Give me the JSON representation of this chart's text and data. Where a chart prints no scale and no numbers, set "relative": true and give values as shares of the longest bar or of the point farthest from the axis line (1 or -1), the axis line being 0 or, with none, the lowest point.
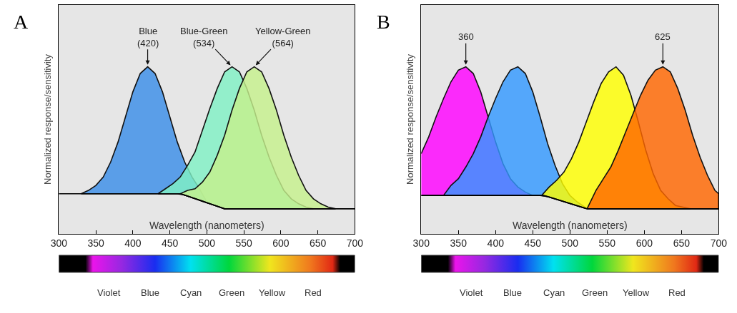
{
  "chart_data": [
    {
      "type": "area",
      "title": "A",
      "xlabel": "Wavelength (nanometers)",
      "ylabel": "Normalized response/sensitivity",
      "xlim": [
        300,
        700
      ],
      "xticks": [
        300,
        350,
        400,
        450,
        500,
        550,
        600,
        650,
        700
      ],
      "relative": true,
      "annotations": [
        {
          "text": "Blue\n(420)",
          "x": 420,
          "y": 1
        },
        {
          "text": "Blue-Green\n(534)",
          "x": 534,
          "y": 1
        },
        {
          "text": "Yellow-Green\n(564)",
          "x": 564,
          "y": 1
        },
        "Violet",
        "Blue",
        "Cyan",
        "Green",
        "Yellow",
        "Red"
      ],
      "series": [
        {
          "color": "#3a8ee8",
          "x": [
            330,
            340,
            350,
            360,
            370,
            380,
            390,
            400,
            410,
            420,
            430,
            440,
            450,
            460,
            470,
            480,
            490,
            500
          ],
          "values": [
            0.24,
            0.26,
            0.29,
            0.34,
            0.43,
            0.55,
            0.7,
            0.85,
            0.96,
            1,
            0.96,
            0.85,
            0.7,
            0.55,
            0.43,
            0.34,
            0.27,
            0.19
          ]
        },
        {
          "color": "#80f0c4",
          "x": [
            434,
            444,
            454,
            464,
            474,
            484,
            494,
            504,
            514,
            524,
            534,
            544,
            554,
            564,
            574,
            584,
            594,
            604,
            614,
            624,
            634,
            644
          ],
          "values": [
            0.24,
            0.27,
            0.3,
            0.34,
            0.41,
            0.49,
            0.62,
            0.75,
            0.87,
            0.97,
            1,
            0.97,
            0.87,
            0.74,
            0.59,
            0.46,
            0.35,
            0.26,
            0.21,
            0.18,
            0.16,
            0.15
          ]
        },
        {
          "color": "#c6f08c",
          "x": [
            464,
            474,
            484,
            494,
            504,
            514,
            524,
            534,
            544,
            554,
            564,
            574,
            584,
            594,
            604,
            614,
            624,
            634,
            644,
            654,
            664,
            674
          ],
          "values": [
            0.24,
            0.26,
            0.27,
            0.31,
            0.37,
            0.47,
            0.59,
            0.74,
            0.87,
            0.97,
            1,
            0.97,
            0.87,
            0.74,
            0.59,
            0.46,
            0.35,
            0.26,
            0.21,
            0.18,
            0.16,
            0.15
          ]
        },
        {
          "type": "line",
          "color": "#000000",
          "x": [
            300,
            465,
            524,
            700
          ],
          "values": [
            0.24,
            0.24,
            0.15,
            0.15
          ]
        }
      ]
    },
    {
      "type": "area",
      "title": "B",
      "xlabel": "Wavelength (nanometers)",
      "ylabel": "Normalized response/sensitivity",
      "xlim": [
        300,
        700
      ],
      "xticks": [
        300,
        350,
        400,
        450,
        500,
        550,
        600,
        650,
        700
      ],
      "relative": true,
      "annotations": [
        {
          "text": "360",
          "x": 360,
          "y": 1
        },
        {
          "text": "625",
          "x": 625,
          "y": 1
        },
        "Violet",
        "Blue",
        "Cyan",
        "Green",
        "Yellow",
        "Red"
      ],
      "series": [
        {
          "color": "#ff00ff",
          "x": [
            300,
            310,
            320,
            330,
            340,
            350,
            360,
            370,
            380,
            390,
            400,
            410,
            420,
            430,
            440,
            450
          ],
          "values": [
            0.48,
            0.58,
            0.7,
            0.81,
            0.91,
            0.98,
            1,
            0.96,
            0.85,
            0.7,
            0.55,
            0.42,
            0.33,
            0.28,
            0.25,
            0.23
          ]
        },
        {
          "color": "#3399ff",
          "x": [
            330,
            340,
            350,
            360,
            370,
            380,
            390,
            400,
            410,
            420,
            430,
            440,
            450,
            460,
            470,
            480,
            490,
            500,
            510,
            520
          ],
          "values": [
            0.23,
            0.29,
            0.33,
            0.4,
            0.48,
            0.58,
            0.7,
            0.81,
            0.91,
            0.98,
            1,
            0.96,
            0.85,
            0.7,
            0.54,
            0.41,
            0.3,
            0.23,
            0.19,
            0.16
          ]
        },
        {
          "color": "#ffff00",
          "x": [
            462,
            472,
            482,
            492,
            502,
            512,
            522,
            532,
            542,
            552,
            562,
            572,
            582,
            592,
            602,
            612,
            622,
            632,
            642,
            652,
            662
          ],
          "values": [
            0.23,
            0.28,
            0.32,
            0.37,
            0.45,
            0.55,
            0.67,
            0.79,
            0.9,
            0.97,
            1,
            0.95,
            0.83,
            0.67,
            0.5,
            0.36,
            0.26,
            0.21,
            0.17,
            0.16,
            0.15
          ]
        },
        {
          "color": "#ff6600",
          "x": [
            523,
            535,
            545,
            555,
            565,
            575,
            585,
            595,
            605,
            615,
            625,
            635,
            645,
            655,
            665,
            675,
            685,
            695,
            700
          ],
          "values": [
            0.15,
            0.26,
            0.33,
            0.4,
            0.5,
            0.61,
            0.72,
            0.83,
            0.92,
            0.98,
            1,
            0.97,
            0.87,
            0.74,
            0.59,
            0.46,
            0.35,
            0.26,
            0.24
          ]
        },
        {
          "type": "line",
          "color": "#000000",
          "x": [
            300,
            465,
            523,
            700
          ],
          "values": [
            0.23,
            0.23,
            0.15,
            0.15
          ]
        }
      ]
    }
  ]
}
